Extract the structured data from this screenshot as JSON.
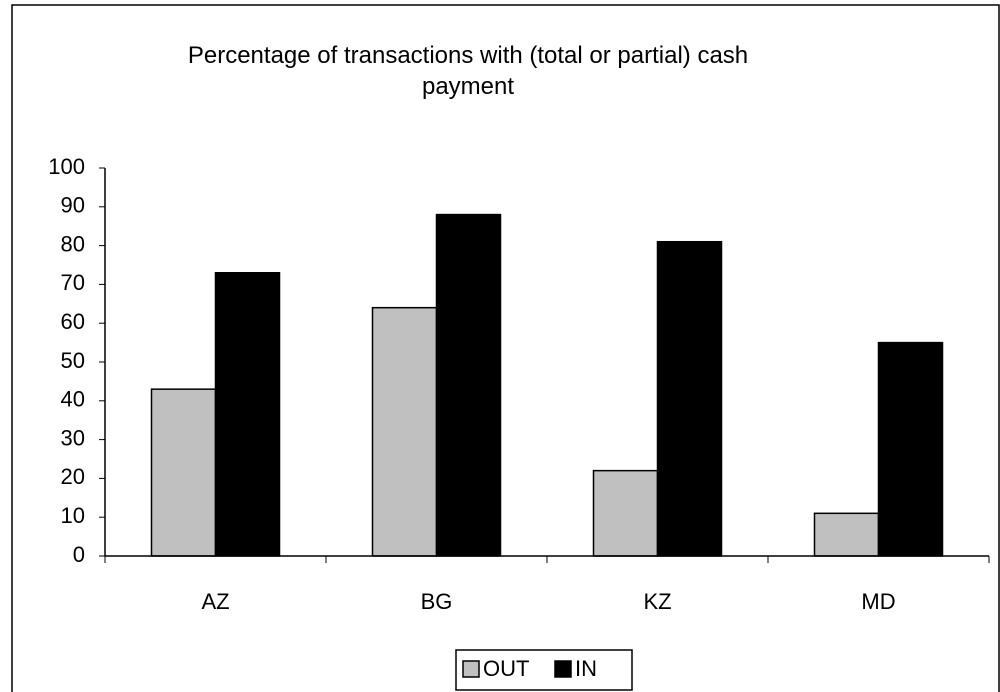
{
  "chart_data": {
    "type": "bar",
    "title": "Percentage of transactions with (total or partial) cash payment",
    "categories": [
      "AZ",
      "BG",
      "KZ",
      "MD"
    ],
    "series": [
      {
        "name": "OUT",
        "color": "#c0c0c0",
        "values": [
          43,
          64,
          22,
          11
        ]
      },
      {
        "name": "IN",
        "color": "#000000",
        "values": [
          73,
          88,
          81,
          55
        ]
      }
    ],
    "ylim": [
      0,
      100
    ],
    "yticks": [
      0,
      10,
      20,
      30,
      40,
      50,
      60,
      70,
      80,
      90,
      100
    ],
    "legend": "bottom"
  }
}
